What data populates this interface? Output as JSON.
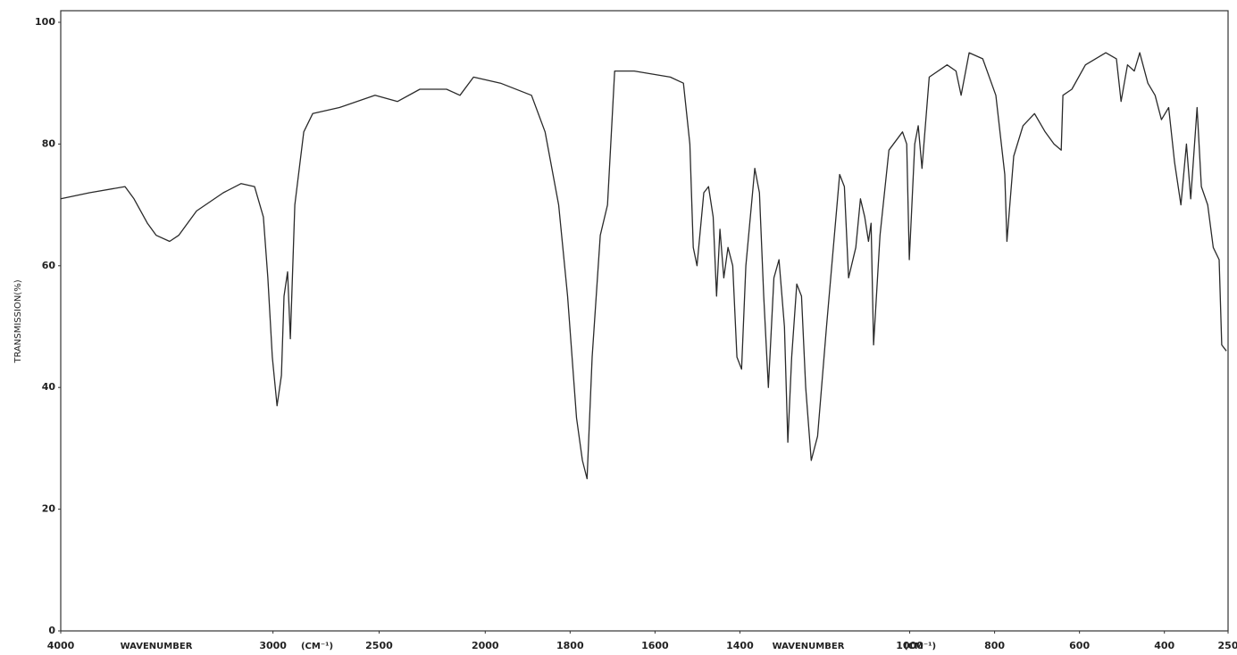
{
  "chart_data": {
    "type": "line",
    "y_label": "TRANSMISSION(%)",
    "x_axis_labels": [
      "WAVENUMBER",
      "(CM⁻¹)",
      "WAVENUMBER",
      "(CM⁻¹)"
    ],
    "x": [
      4000,
      3865,
      3697,
      3655,
      3592,
      3550,
      3487,
      3444,
      3360,
      3234,
      3150,
      3087,
      3045,
      3024,
      3003,
      2981,
      2960,
      2948,
      2931,
      2918,
      2897,
      2855,
      2813,
      2687,
      2519,
      2413,
      2308,
      2182,
      2119,
      2055,
      1964,
      1891,
      1859,
      1827,
      1806,
      1785,
      1771,
      1760,
      1748,
      1729,
      1712,
      1695,
      1649,
      1564,
      1533,
      1518,
      1510,
      1501,
      1485,
      1474,
      1463,
      1455,
      1447,
      1438,
      1428,
      1417,
      1407,
      1396,
      1386,
      1365,
      1354,
      1344,
      1333,
      1320,
      1308,
      1295,
      1287,
      1278,
      1266,
      1255,
      1245,
      1232,
      1217,
      1196,
      1165,
      1154,
      1144,
      1127,
      1116,
      1106,
      1097,
      1091,
      1085,
      1070,
      1049,
      1017,
      1007,
      1001,
      988,
      980,
      971,
      954,
      912,
      891,
      879,
      860,
      828,
      797,
      776,
      771,
      755,
      733,
      706,
      681,
      660,
      643,
      639,
      618,
      586,
      538,
      513,
      502,
      487,
      471,
      458,
      439,
      422,
      407,
      390,
      376,
      361,
      348,
      338,
      323,
      313,
      298,
      285,
      271,
      265,
      254
    ],
    "series": [
      {
        "color": "#2a2a2a",
        "values": [
          71,
          72,
          73,
          71,
          67,
          65,
          64,
          65,
          69,
          72,
          73.5,
          73,
          68,
          58,
          45,
          37,
          42,
          55,
          59,
          48,
          70,
          82,
          85,
          86,
          88,
          87,
          89,
          89,
          88,
          91,
          90,
          88,
          82,
          70,
          55,
          35,
          28,
          25,
          45,
          65,
          70,
          92,
          92,
          91,
          90,
          80,
          63,
          60,
          72,
          73,
          68,
          55,
          66,
          58,
          63,
          60,
          45,
          43,
          60,
          76,
          72,
          55,
          40,
          58,
          61,
          50,
          31,
          45,
          57,
          55,
          40,
          28,
          32,
          50,
          75,
          73,
          58,
          63,
          71,
          68,
          64,
          67,
          47,
          65,
          79,
          82,
          80,
          61,
          80,
          83,
          76,
          91,
          93,
          92,
          88,
          95,
          94,
          88,
          75,
          64,
          78,
          83,
          85,
          82,
          80,
          79,
          88,
          89,
          93,
          95,
          94,
          87,
          93,
          92,
          95,
          90,
          88,
          84,
          86,
          77,
          70,
          80,
          71,
          86,
          73,
          70,
          63,
          61,
          47,
          46
        ]
      }
    ],
    "xlim": [
      4000,
      250
    ],
    "x_scale_break": 2000,
    "x_scale_factor": 2,
    "xticks": [
      4000,
      3000,
      2500,
      2000,
      1800,
      1600,
      1400,
      1000,
      800,
      600,
      400,
      250
    ],
    "ylim": [
      0,
      100
    ],
    "yticks": [
      0,
      20,
      40,
      60,
      80,
      100
    ]
  }
}
